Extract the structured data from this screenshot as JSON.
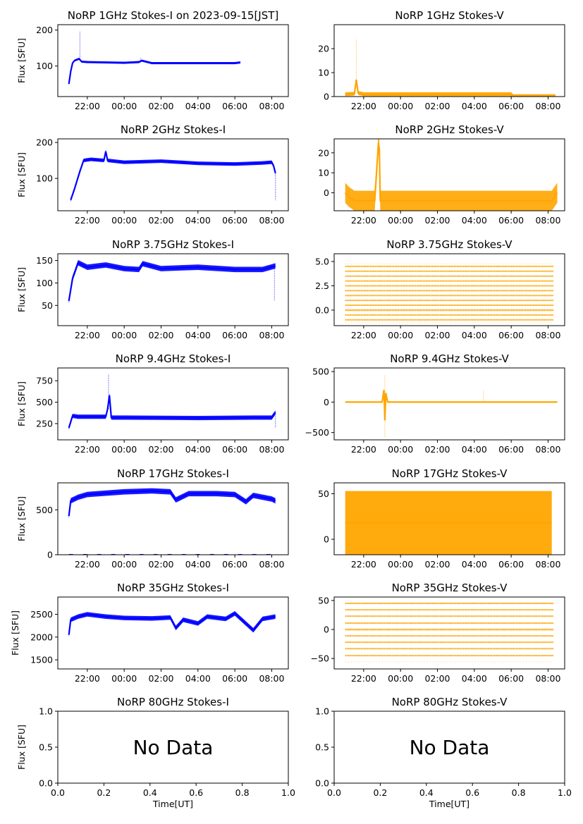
{
  "figure": {
    "main_title": "NoRP 1GHz Stokes-I on 2023-09-15[JST]",
    "ylabel": "Flux [SFU]",
    "xlabel": "Time[UT]",
    "no_data_text": "No Data",
    "time_ticks": [
      "22:00",
      "00:00",
      "02:00",
      "04:00",
      "06:00",
      "08:00"
    ],
    "colors": {
      "stokes_i": "#0000ff",
      "stokes_v": "#ffa500",
      "axes": "#000000"
    }
  },
  "chart_data": [
    {
      "id": "1ghz-i",
      "type": "line",
      "title": "NoRP 1GHz Stokes-I",
      "ylabel": "Flux [SFU]",
      "xlim": [
        20.4,
        32.9
      ],
      "ylim": [
        15,
        215
      ],
      "yticks": [
        100,
        200
      ],
      "color": "#0000ff",
      "x": [
        21.0,
        21.1,
        21.2,
        21.3,
        21.55,
        21.7,
        22.0,
        24.0,
        24.8,
        24.95,
        25.5,
        28.0,
        30.0,
        30.3
      ],
      "values": [
        50,
        85,
        108,
        115,
        120,
        112,
        111,
        109,
        111,
        115,
        108,
        108,
        108,
        110
      ],
      "spikes": [
        {
          "x": 21.6,
          "value": 195
        },
        {
          "x": 24.9,
          "value": 122
        }
      ],
      "band": 3
    },
    {
      "id": "1ghz-v",
      "type": "line",
      "title": "NoRP 1GHz Stokes-V",
      "ylabel": "",
      "xlim": [
        20.4,
        32.9
      ],
      "ylim": [
        0,
        30
      ],
      "yticks": [
        0,
        10,
        20
      ],
      "color": "#ffa500",
      "x": [
        21.0,
        21.5,
        21.6,
        21.7,
        22.0,
        30.0,
        30.1,
        32.4
      ],
      "values": [
        1.0,
        1.2,
        7.0,
        1.5,
        1.0,
        1.0,
        0.2,
        0.2
      ],
      "spikes": [
        {
          "x": 21.6,
          "value": 24
        }
      ],
      "band": 0.8
    },
    {
      "id": "2ghz-i",
      "type": "line",
      "title": "NoRP 2GHz Stokes-I",
      "ylabel": "Flux [SFU]",
      "xlim": [
        20.4,
        32.9
      ],
      "ylim": [
        10,
        210
      ],
      "yticks": [
        100,
        200
      ],
      "color": "#0000ff",
      "x": [
        21.1,
        21.3,
        21.6,
        21.8,
        22.2,
        22.9,
        23.0,
        23.1,
        24.0,
        26.0,
        28.0,
        30.0,
        31.5,
        32.0,
        32.1,
        32.2
      ],
      "values": [
        40,
        70,
        120,
        150,
        153,
        150,
        175,
        150,
        145,
        148,
        142,
        140,
        143,
        145,
        135,
        115
      ],
      "spikes": [
        {
          "x": 32.2,
          "value": 40
        }
      ],
      "band": 5
    },
    {
      "id": "2ghz-v",
      "type": "line",
      "title": "NoRP 2GHz Stokes-V",
      "ylabel": "",
      "xlim": [
        20.4,
        32.9
      ],
      "ylim": [
        -9,
        27
      ],
      "yticks": [
        0,
        10,
        20
      ],
      "color": "#ffa500",
      "x": [
        21.0,
        21.2,
        21.5,
        22.6,
        22.8,
        22.85,
        22.9,
        23.0,
        25.0,
        28.0,
        32.2,
        32.5
      ],
      "values": [
        0,
        -2,
        -4,
        -4,
        25,
        22,
        -4,
        -4,
        -4,
        -4,
        -4,
        0
      ],
      "spikes": [],
      "band": 5
    },
    {
      "id": "375ghz-i",
      "type": "line",
      "title": "NoRP 3.75GHz Stokes-I",
      "ylabel": "Flux [SFU]",
      "xlim": [
        20.4,
        32.9
      ],
      "ylim": [
        5,
        165
      ],
      "yticks": [
        50,
        100,
        150
      ],
      "color": "#0000ff",
      "x": [
        21.0,
        21.2,
        21.5,
        22.0,
        23.0,
        24.0,
        24.8,
        25.0,
        26.0,
        28.0,
        30.0,
        31.5,
        32.2
      ],
      "values": [
        60,
        110,
        145,
        135,
        140,
        132,
        130,
        143,
        132,
        135,
        130,
        130,
        138
      ],
      "spikes": [
        {
          "x": 32.15,
          "value": 60
        }
      ],
      "band": 6
    },
    {
      "id": "375ghz-v",
      "type": "scatter",
      "title": "NoRP 3.75GHz Stokes-V",
      "ylabel": "",
      "xlim": [
        20.4,
        32.9
      ],
      "ylim": [
        -1.6,
        5.8
      ],
      "yticks": [
        0.0,
        2.5,
        5.0
      ],
      "color": "#ffa500",
      "x": [
        21.0,
        32.3
      ],
      "values": [
        -1.25,
        4.75
      ],
      "levels": [
        -1.0,
        -0.5,
        0.0,
        0.5,
        1.0,
        1.5,
        2.0,
        2.5,
        3.0,
        3.5,
        4.0,
        4.5
      ],
      "spikes": [],
      "band": 0
    },
    {
      "id": "94ghz-i",
      "type": "line",
      "title": "NoRP 9.4GHz Stokes-I",
      "ylabel": "Flux [SFU]",
      "xlim": [
        20.4,
        32.9
      ],
      "ylim": [
        60,
        900
      ],
      "yticks": [
        250,
        500,
        750
      ],
      "color": "#0000ff",
      "x": [
        21.0,
        21.2,
        21.5,
        23.0,
        23.1,
        23.2,
        23.3,
        24.0,
        28.0,
        31.0,
        32.0,
        32.2
      ],
      "values": [
        200,
        340,
        330,
        330,
        420,
        580,
        320,
        320,
        315,
        320,
        320,
        380
      ],
      "spikes": [
        {
          "x": 23.15,
          "value": 820
        },
        {
          "x": 32.2,
          "value": 200
        }
      ],
      "band": 25
    },
    {
      "id": "94ghz-v",
      "type": "line",
      "title": "NoRP 9.4GHz Stokes-V",
      "ylabel": "",
      "xlim": [
        20.4,
        32.9
      ],
      "ylim": [
        -620,
        560
      ],
      "yticks": [
        -500,
        0,
        500
      ],
      "color": "#ffa500",
      "x": [
        21.0,
        23.0,
        23.1,
        23.15,
        23.2,
        23.3,
        32.5
      ],
      "values": [
        0,
        0,
        200,
        -300,
        150,
        0,
        0
      ],
      "spikes": [
        {
          "x": 23.15,
          "value": 450
        },
        {
          "x": 23.15,
          "value": -580
        },
        {
          "x": 28.5,
          "value": 200
        }
      ],
      "band": 10
    },
    {
      "id": "17ghz-i",
      "type": "line",
      "title": "NoRP 17GHz Stokes-I",
      "ylabel": "Flux [SFU]",
      "xlim": [
        20.4,
        32.9
      ],
      "ylim": [
        0,
        800
      ],
      "yticks": [
        0,
        500
      ],
      "color": "#0000ff",
      "x": [
        21.0,
        21.1,
        21.5,
        22.0,
        24.0,
        25.5,
        26.5,
        26.8,
        27.5,
        29.0,
        30.0,
        30.6,
        31.0,
        32.0,
        32.2
      ],
      "values": [
        430,
        600,
        640,
        670,
        700,
        710,
        700,
        610,
        680,
        680,
        670,
        590,
        660,
        620,
        600
      ],
      "spikes": [],
      "baseline": 0,
      "band": 30
    },
    {
      "id": "17ghz-v",
      "type": "line",
      "title": "NoRP 17GHz Stokes-V",
      "ylabel": "",
      "xlim": [
        20.4,
        32.9
      ],
      "ylim": [
        -17,
        62
      ],
      "yticks": [
        0,
        50
      ],
      "color": "#ffa500",
      "x": [
        21.0,
        26.0,
        32.2
      ],
      "values": [
        18,
        18,
        18
      ],
      "spikes": [],
      "band": 35
    },
    {
      "id": "35ghz-i",
      "type": "line",
      "title": "NoRP 35GHz Stokes-I",
      "ylabel": "Flux [SFU]",
      "xlim": [
        20.4,
        32.9
      ],
      "ylim": [
        1300,
        2880
      ],
      "yticks": [
        1500,
        2000,
        2500
      ],
      "color": "#0000ff",
      "x": [
        21.0,
        21.1,
        21.5,
        22.0,
        23.0,
        24.0,
        25.5,
        26.5,
        26.8,
        27.2,
        28.0,
        28.5,
        29.5,
        30.0,
        31.0,
        31.5,
        32.2
      ],
      "values": [
        2050,
        2380,
        2450,
        2500,
        2450,
        2420,
        2410,
        2430,
        2200,
        2380,
        2300,
        2450,
        2400,
        2520,
        2150,
        2400,
        2450
      ],
      "spikes": [],
      "band": 50
    },
    {
      "id": "35ghz-v",
      "type": "scatter",
      "title": "NoRP 35GHz Stokes-V",
      "ylabel": "",
      "xlim": [
        20.4,
        32.9
      ],
      "ylim": [
        -68,
        56
      ],
      "yticks": [
        -50,
        0,
        50
      ],
      "color": "#ffa500",
      "x": [
        21.0,
        32.3
      ],
      "values": [
        -56,
        46
      ],
      "levels": [
        -45,
        -33,
        -22,
        -11,
        0,
        11,
        23,
        34,
        45
      ],
      "spikes": [],
      "band": 0
    },
    {
      "id": "80ghz-i",
      "type": "line",
      "title": "NoRP 80GHz Stokes-I",
      "ylabel": "Flux [SFU]",
      "xlabel": "Time[UT]",
      "xlim": [
        0,
        1
      ],
      "ylim": [
        0,
        1
      ],
      "xticks": [
        "0.0",
        "0.2",
        "0.4",
        "0.6",
        "0.8",
        "1.0"
      ],
      "yticks": [
        "0.0",
        "0.5",
        "1.0"
      ],
      "empty": true
    },
    {
      "id": "80ghz-v",
      "type": "line",
      "title": "NoRP 80GHz Stokes-V",
      "ylabel": "",
      "xlabel": "Time[UT]",
      "xlim": [
        0,
        1
      ],
      "ylim": [
        0,
        1
      ],
      "xticks": [
        "0.0",
        "0.2",
        "0.4",
        "0.6",
        "0.8",
        "1.0"
      ],
      "yticks": [
        "0.0",
        "0.5",
        "1.0"
      ],
      "empty": true
    }
  ]
}
